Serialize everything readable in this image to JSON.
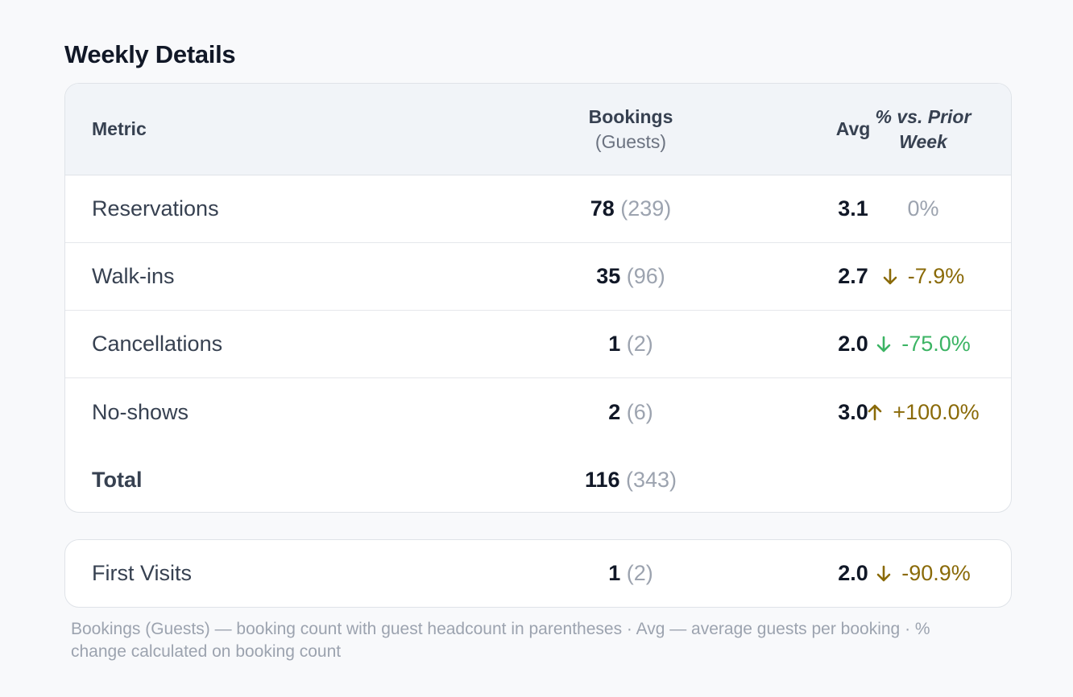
{
  "title": "Weekly Details",
  "header": {
    "metric": "Metric",
    "bookings": "Bookings",
    "bookings_sub": "(Guests)",
    "avg": "Avg",
    "pct": "% vs. Prior Week"
  },
  "rows": [
    {
      "metric": "Reservations",
      "bookings": "78",
      "guests": "(239)",
      "avg": "3.1",
      "pct": "0%",
      "trend": "none",
      "tone": "neutral"
    },
    {
      "metric": "Walk-ins",
      "bookings": "35",
      "guests": "(96)",
      "avg": "2.7",
      "pct": "-7.9%",
      "trend": "down-arrow-icon",
      "tone": "amber"
    },
    {
      "metric": "Cancellations",
      "bookings": "1",
      "guests": "(2)",
      "avg": "2.0",
      "pct": "-75.0%",
      "trend": "down-arrow-icon",
      "tone": "green"
    },
    {
      "metric": "No-shows",
      "bookings": "2",
      "guests": "(6)",
      "avg": "3.0",
      "pct": "+100.0%",
      "trend": "up-arrow-icon",
      "tone": "amber"
    }
  ],
  "total": {
    "metric": "Total",
    "bookings": "116",
    "guests": "(343)"
  },
  "extra": {
    "metric": "First Visits",
    "bookings": "1",
    "guests": "(2)",
    "avg": "2.0",
    "pct": "-90.9%",
    "trend": "down-arrow-icon",
    "tone": "amber"
  },
  "footnote": "Bookings (Guests) — booking count with guest headcount in parentheses · Avg — average guests per booking · % change calculated on booking count",
  "colors": {
    "amber": "#8a6a08",
    "green": "#3cb464",
    "neutral": "#9ca3af"
  }
}
